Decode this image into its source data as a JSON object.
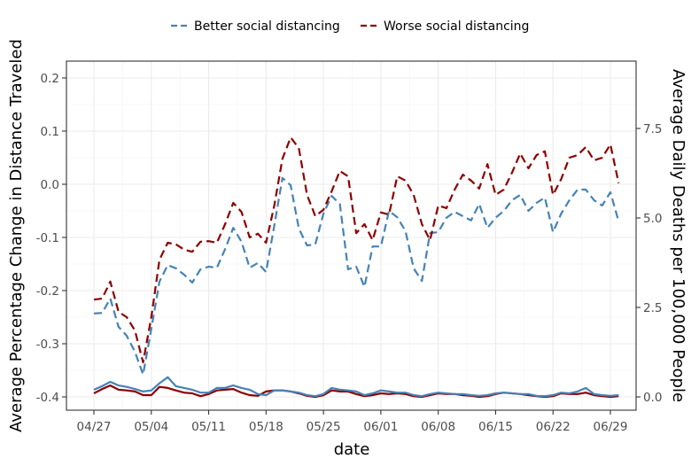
{
  "chart_data": {
    "type": "line",
    "xlabel": "date",
    "ylabel_left": "Average Percentage Change in Distance Traveled",
    "ylabel_right": "Average Daily Deaths per 100,000 People",
    "x_tick_labels": [
      "04/27",
      "05/04",
      "05/11",
      "05/18",
      "05/25",
      "06/01",
      "06/08",
      "06/15",
      "06/22",
      "06/29"
    ],
    "x_range_days": [
      0,
      63
    ],
    "left_axis": {
      "range": [
        -0.4,
        0.2
      ],
      "ticks": [
        "0.2",
        "0.1",
        "0.0",
        "-0.1",
        "-0.2",
        "-0.3",
        "-0.4"
      ]
    },
    "right_axis": {
      "range": [
        0,
        10
      ],
      "ticks": [
        "7.5",
        "5.0",
        "2.5",
        "0.0"
      ]
    },
    "grid": true,
    "legend_position": "top",
    "series": [
      {
        "name": "Better social distancing",
        "color": "#4682B4",
        "axis": "left",
        "metric": "distance",
        "values": [
          -0.243,
          -0.242,
          -0.215,
          -0.268,
          -0.285,
          -0.315,
          -0.358,
          -0.272,
          -0.183,
          -0.152,
          -0.158,
          -0.17,
          -0.185,
          -0.16,
          -0.155,
          -0.157,
          -0.122,
          -0.082,
          -0.108,
          -0.157,
          -0.148,
          -0.165,
          -0.078,
          0.012,
          -0.002,
          -0.083,
          -0.115,
          -0.113,
          -0.055,
          -0.022,
          -0.037,
          -0.16,
          -0.155,
          -0.193,
          -0.117,
          -0.117,
          -0.05,
          -0.062,
          -0.088,
          -0.158,
          -0.182,
          -0.092,
          -0.09,
          -0.063,
          -0.052,
          -0.06,
          -0.068,
          -0.037,
          -0.082,
          -0.063,
          -0.05,
          -0.03,
          -0.02,
          -0.05,
          -0.035,
          -0.025,
          -0.09,
          -0.055,
          -0.03,
          -0.01,
          -0.01,
          -0.03,
          -0.04,
          -0.015,
          -0.07
        ]
      },
      {
        "name": "Worse social distancing",
        "color": "#8B0000",
        "axis": "left",
        "metric": "distance",
        "values": [
          -0.217,
          -0.215,
          -0.183,
          -0.24,
          -0.25,
          -0.275,
          -0.335,
          -0.25,
          -0.142,
          -0.11,
          -0.113,
          -0.123,
          -0.127,
          -0.108,
          -0.107,
          -0.11,
          -0.075,
          -0.035,
          -0.052,
          -0.1,
          -0.093,
          -0.11,
          -0.04,
          0.048,
          0.088,
          0.068,
          -0.02,
          -0.06,
          -0.048,
          -0.013,
          0.025,
          0.015,
          -0.092,
          -0.075,
          -0.105,
          -0.053,
          -0.057,
          0.015,
          0.007,
          -0.02,
          -0.075,
          -0.105,
          -0.04,
          -0.045,
          -0.01,
          0.018,
          0.007,
          -0.008,
          0.038,
          -0.02,
          -0.01,
          0.022,
          0.058,
          0.03,
          0.055,
          0.062,
          -0.02,
          0.01,
          0.05,
          0.055,
          0.07,
          0.045,
          0.05,
          0.075,
          0.002
        ]
      },
      {
        "name": "Better social distancing",
        "color": "#4682B4",
        "axis": "right",
        "metric": "deaths",
        "values": [
          0.2,
          0.3,
          0.42,
          0.32,
          0.28,
          0.22,
          0.15,
          0.18,
          0.38,
          0.55,
          0.3,
          0.25,
          0.2,
          0.12,
          0.12,
          0.25,
          0.25,
          0.32,
          0.25,
          0.2,
          0.08,
          0.05,
          0.18,
          0.18,
          0.15,
          0.12,
          0.05,
          0.02,
          0.08,
          0.25,
          0.2,
          0.18,
          0.15,
          0.05,
          0.1,
          0.18,
          0.15,
          0.12,
          0.12,
          0.05,
          0.02,
          0.08,
          0.12,
          0.1,
          0.08,
          0.08,
          0.05,
          0.03,
          0.05,
          0.1,
          0.12,
          0.1,
          0.08,
          0.08,
          0.03,
          0.02,
          0.05,
          0.12,
          0.1,
          0.15,
          0.25,
          0.08,
          0.05,
          0.03,
          0.05
        ]
      },
      {
        "name": "Worse social distancing",
        "color": "#8B0000",
        "axis": "right",
        "metric": "deaths",
        "values": [
          0.1,
          0.22,
          0.32,
          0.2,
          0.18,
          0.15,
          0.05,
          0.05,
          0.28,
          0.25,
          0.18,
          0.12,
          0.1,
          0.02,
          0.08,
          0.18,
          0.2,
          0.22,
          0.12,
          0.05,
          0.03,
          0.15,
          0.18,
          0.18,
          0.15,
          0.1,
          0.03,
          0.0,
          0.05,
          0.18,
          0.15,
          0.15,
          0.08,
          0.02,
          0.05,
          0.1,
          0.08,
          0.1,
          0.08,
          0.02,
          0.0,
          0.05,
          0.1,
          0.08,
          0.08,
          0.05,
          0.03,
          0.0,
          0.02,
          0.08,
          0.12,
          0.1,
          0.08,
          0.05,
          0.02,
          0.0,
          0.02,
          0.1,
          0.08,
          0.08,
          0.12,
          0.05,
          0.02,
          0.0,
          0.02
        ]
      }
    ]
  }
}
